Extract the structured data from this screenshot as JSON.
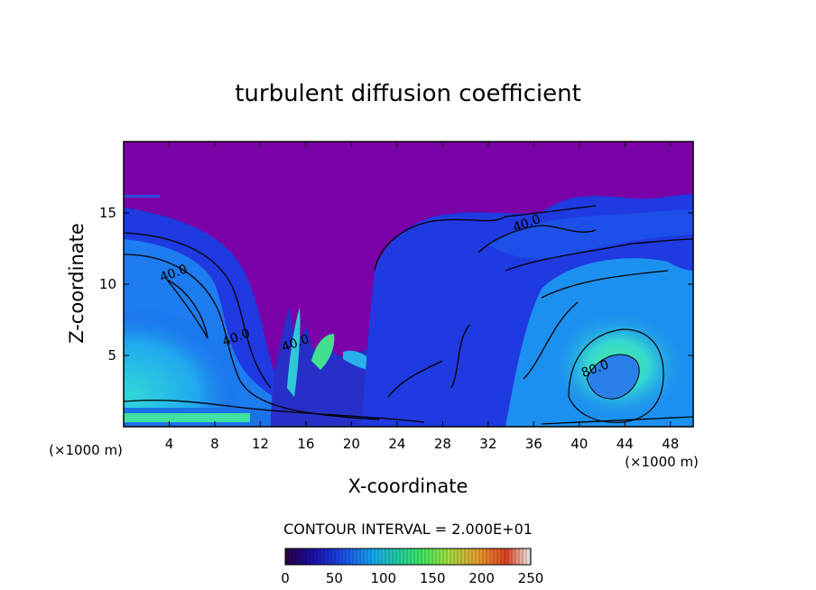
{
  "chart_data": {
    "type": "heatmap",
    "title": "turbulent diffusion coefficient",
    "xlabel": "X-coordinate",
    "ylabel": "Z-coordinate",
    "x_unit": "(×1000 m)",
    "x_unit_right": "(×1000 m)",
    "xlim": [
      0,
      50
    ],
    "ylim": [
      0,
      20
    ],
    "x_ticks": [
      4,
      8,
      12,
      16,
      20,
      24,
      28,
      32,
      36,
      40,
      44,
      48
    ],
    "y_ticks": [
      5,
      10,
      15
    ],
    "contour_interval_text": "CONTOUR INTERVAL = 2.000E+01",
    "contour_labels": [
      {
        "text": "40.0",
        "x": 4.5,
        "y": 10.5
      },
      {
        "text": "40.0",
        "x": 10.0,
        "y": 6.0
      },
      {
        "text": "40.0",
        "x": 15.2,
        "y": 5.6
      },
      {
        "text": "40.0",
        "x": 35.5,
        "y": 14.0
      },
      {
        "text": "80.0",
        "x": 41.5,
        "y": 3.8
      }
    ],
    "colorbar": {
      "min": 0,
      "max": 250,
      "ticks": [
        0,
        50,
        100,
        150,
        200,
        250
      ],
      "stops": [
        "#2a0040",
        "#1a10b0",
        "#1a50e8",
        "#18a8f0",
        "#20d0a0",
        "#40e860",
        "#a0e040",
        "#e8a030",
        "#e04020",
        "#f0f0f0"
      ]
    },
    "colors": {
      "background_field": "#7a00a8",
      "low_field": "#1f2ad8",
      "mid_field": "#1c7cf0",
      "high_field": "#28d8d0",
      "peak_field": "#44e89a"
    }
  }
}
